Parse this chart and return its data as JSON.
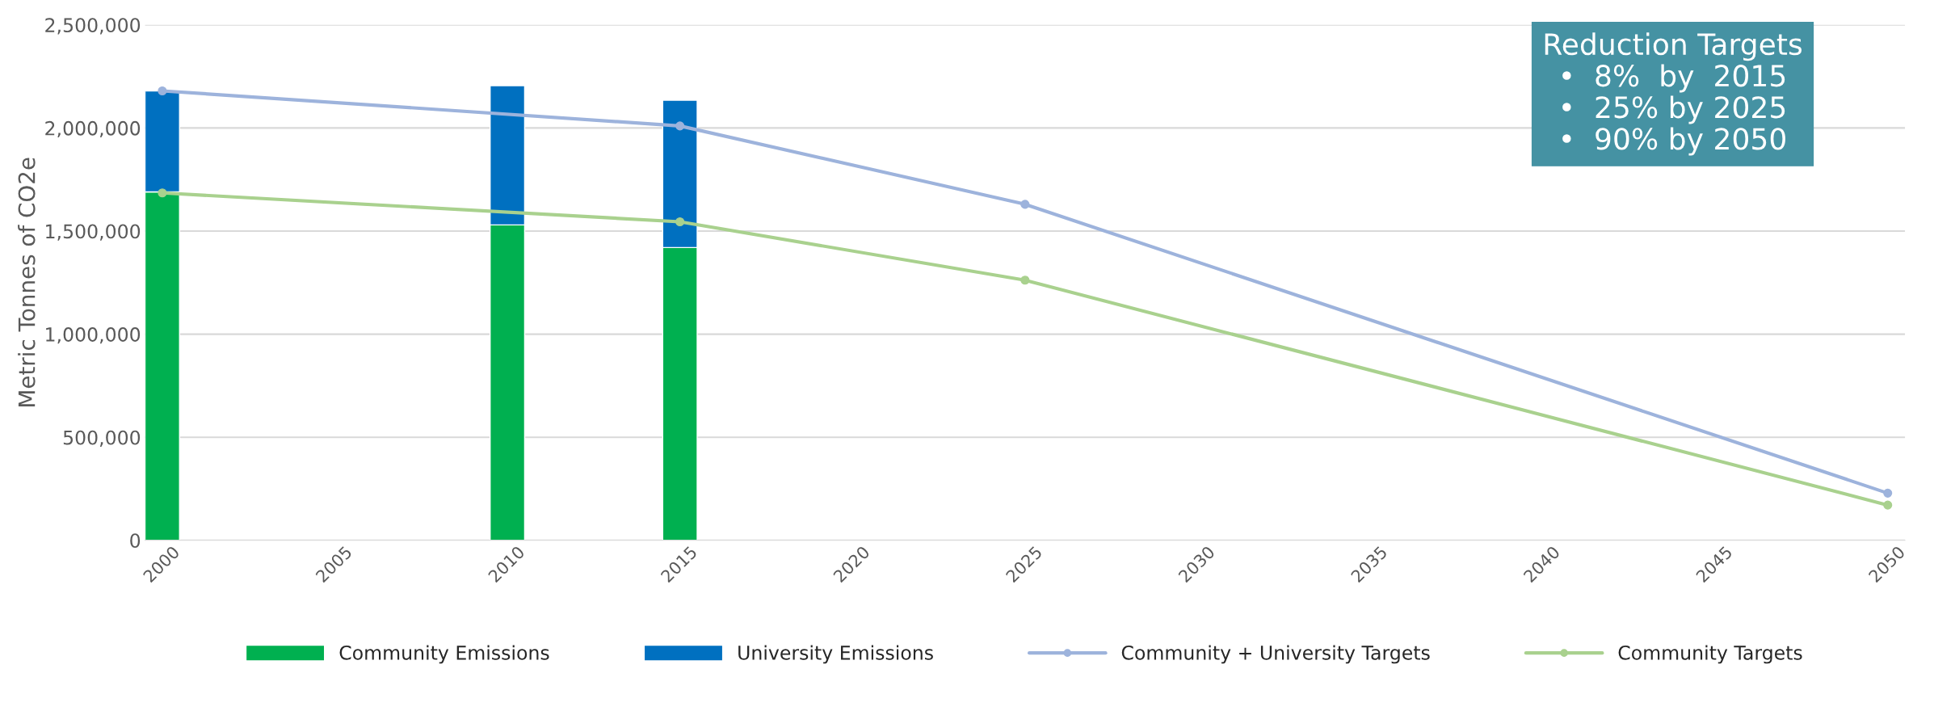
{
  "chart_data": {
    "type": "bar",
    "stacked": true,
    "ylabel": "Metric Tonnes of CO2e",
    "xlim": [
      1999.5,
      2050.5
    ],
    "xticks": [
      2000,
      2005,
      2010,
      2015,
      2020,
      2025,
      2030,
      2035,
      2040,
      2045,
      2050
    ],
    "ylim": [
      0,
      2500000
    ],
    "yticks": [
      {
        "value": 0,
        "label": "0"
      },
      {
        "value": 500000,
        "label": "500,000"
      },
      {
        "value": 1000000,
        "label": "1,000,000"
      },
      {
        "value": 1500000,
        "label": "1,500,000"
      },
      {
        "value": 2000000,
        "label": "2,000,000"
      },
      {
        "value": 2500000,
        "label": "2,500,000"
      }
    ],
    "grid": "y",
    "legend": "bottom",
    "series": [
      {
        "name": "Community Emissions",
        "color": "#00b050",
        "x": [
          2000,
          2010,
          2015
        ],
        "values": [
          1690000,
          1530000,
          1420000
        ]
      },
      {
        "name": "University Emissions",
        "color": "#0070c0",
        "x": [
          2000,
          2010,
          2015
        ],
        "values": [
          490000,
          675000,
          715000
        ]
      },
      {
        "name": "Community + University Targets",
        "type": "line",
        "color": "#9db3dc",
        "marker": "circle",
        "x": [
          2000,
          2015,
          2025,
          2050
        ],
        "values": [
          2180000,
          2010000,
          1630000,
          229000
        ]
      },
      {
        "name": "Community Targets",
        "type": "line",
        "color": "#a9d18e",
        "marker": "circle",
        "x": [
          2000,
          2015,
          2025,
          2050
        ],
        "values": [
          1685000,
          1545000,
          1262000,
          171000
        ]
      }
    ],
    "annotations": [
      "Reduction Targets",
      "•  8%  by  2015",
      "•  25% by 2025",
      "•  90% by 2050"
    ]
  }
}
